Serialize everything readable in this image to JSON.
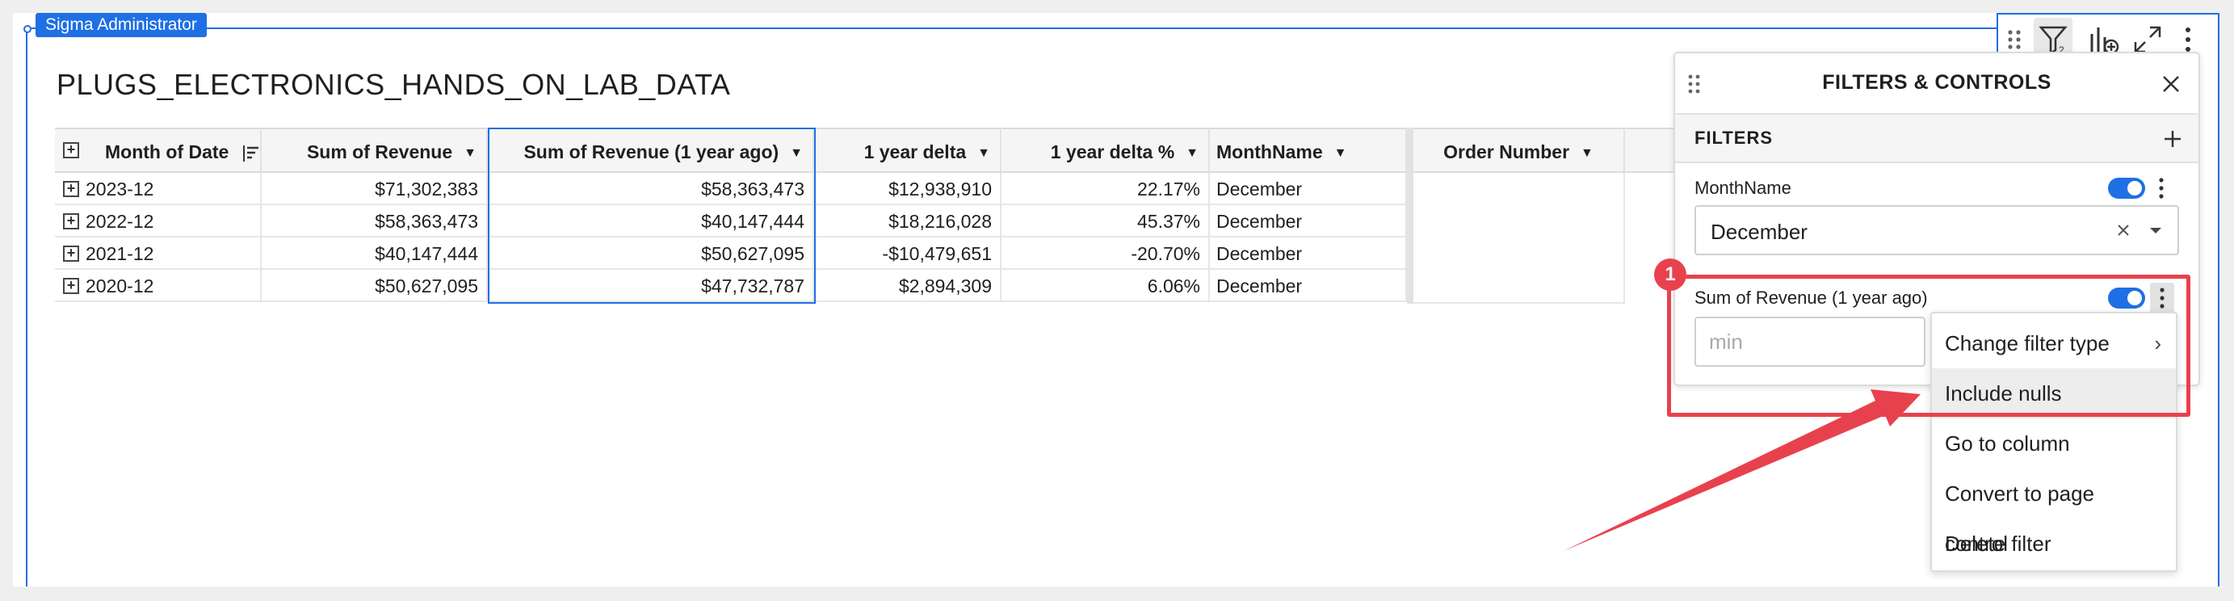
{
  "owner_tag": "Sigma Administrator",
  "element_title": "PLUGS_ELECTRONICS_HANDS_ON_LAB_DATA",
  "table": {
    "columns": [
      {
        "label": "Month of Date"
      },
      {
        "label": "Sum of Revenue"
      },
      {
        "label": "Sum of Revenue (1 year ago)"
      },
      {
        "label": "1 year delta"
      },
      {
        "label": "1 year delta %"
      },
      {
        "label": "MonthName"
      },
      {
        "label": "Order Number"
      }
    ],
    "rows": [
      {
        "month": "2023-12",
        "revenue": "$71,302,383",
        "revenue_prev": "$58,363,473",
        "delta": "$12,938,910",
        "delta_pct": "22.17%",
        "month_name": "December"
      },
      {
        "month": "2022-12",
        "revenue": "$58,363,473",
        "revenue_prev": "$40,147,444",
        "delta": "$18,216,028",
        "delta_pct": "45.37%",
        "month_name": "December"
      },
      {
        "month": "2021-12",
        "revenue": "$40,147,444",
        "revenue_prev": "$50,627,095",
        "delta": "-$10,479,651",
        "delta_pct": "-20.70%",
        "month_name": "December"
      },
      {
        "month": "2020-12",
        "revenue": "$50,627,095",
        "revenue_prev": "$47,732,787",
        "delta": "$2,894,309",
        "delta_pct": "6.06%",
        "month_name": "December"
      }
    ]
  },
  "filters_panel": {
    "title": "FILTERS & CONTROLS",
    "section_label": "FILTERS",
    "filter1": {
      "label": "MonthName",
      "value": "December"
    },
    "filter2": {
      "label": "Sum of Revenue (1 year ago)",
      "min_placeholder": "min"
    }
  },
  "menu": {
    "items": [
      {
        "label": "Change filter type"
      },
      {
        "label": "Include nulls"
      },
      {
        "label": "Go to column"
      },
      {
        "label": "Convert to page control"
      },
      {
        "label": "Delete filter"
      }
    ]
  },
  "annotation": {
    "badge": "1"
  },
  "colors": {
    "accent": "#1f6fe5",
    "annotation": "#e8414e"
  }
}
